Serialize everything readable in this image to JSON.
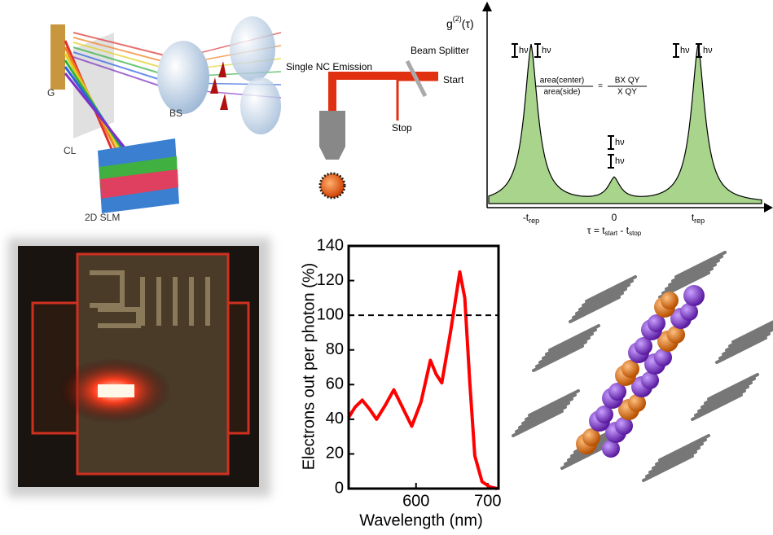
{
  "optics": {
    "labels": [
      "G",
      "CL",
      "BS",
      "2D SLM"
    ]
  },
  "setup": {
    "beam_splitter": "Beam Splitter",
    "emission": "Single NC Emission",
    "start": "Start",
    "stop": "Stop"
  },
  "correlation": {
    "axis_label": {
      "main": "g",
      "sup": "(2)",
      "tail": "(τ)"
    },
    "photon_labels": [
      "hν",
      "hν",
      "hν",
      "hν",
      "hν",
      "hν"
    ],
    "ratio": {
      "num_left": "area(center)",
      "den_left": "area(side)",
      "eq": "=",
      "num_right": "BX QY",
      "den_right": "X QY"
    },
    "ticks": [
      {
        "main": "-t",
        "sub": "rep"
      },
      {
        "main": "0",
        "sub": ""
      },
      {
        "main": "t",
        "sub": "rep"
      }
    ],
    "x_label": {
      "a": "τ = t",
      "a_sub": "start",
      "b": " - t",
      "b_sub": "stop"
    }
  },
  "chart_data": {
    "type": "line",
    "x_label": "Wavelength (nm)",
    "y_label": "Electrons out per photon (%)",
    "x": [
      506,
      515,
      525,
      535,
      545,
      557,
      569,
      581,
      594,
      607,
      620,
      628,
      636,
      648,
      661,
      668,
      675,
      682,
      692,
      703,
      713
    ],
    "series": [
      {
        "color": "#ff0000",
        "values": [
          41,
          47,
          51,
          46,
          40,
          48,
          57,
          47,
          36,
          50,
          74,
          66,
          61,
          90,
          125,
          110,
          61,
          19,
          4,
          1,
          0
        ]
      }
    ],
    "reference_line": 100,
    "xlim": [
      506,
      715
    ],
    "xticks": [
      600,
      700
    ],
    "ylim": [
      0,
      140
    ],
    "yticks": [
      0,
      20,
      40,
      60,
      80,
      100,
      120,
      140
    ]
  }
}
